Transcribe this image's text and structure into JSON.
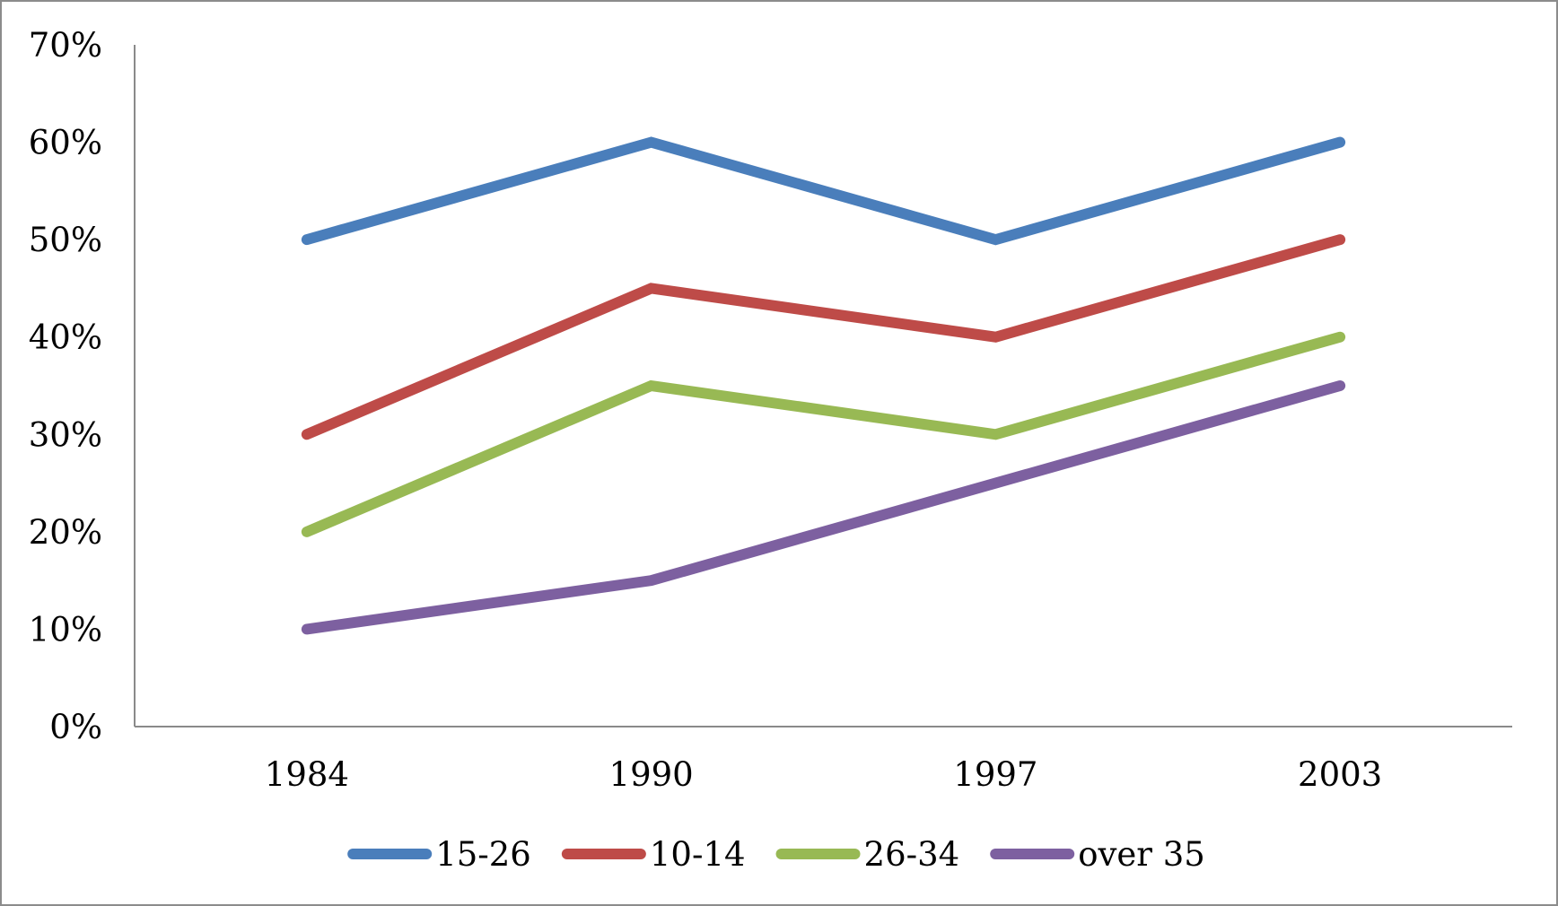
{
  "chart_data": {
    "type": "line",
    "title": "",
    "xlabel": "",
    "ylabel": "",
    "categories": [
      "1984",
      "1990",
      "1997",
      "2003"
    ],
    "ylim": [
      0,
      70
    ],
    "y_ticks": [
      "0%",
      "10%",
      "20%",
      "30%",
      "40%",
      "50%",
      "60%",
      "70%"
    ],
    "y_unit": "%",
    "grid": false,
    "legend_position": "bottom",
    "series": [
      {
        "name": "15-26",
        "values": [
          50,
          60,
          50,
          60
        ],
        "color": "#4a7ebb"
      },
      {
        "name": "10-14",
        "values": [
          30,
          45,
          40,
          50
        ],
        "color": "#be4b48"
      },
      {
        "name": "26-34",
        "values": [
          20,
          35,
          30,
          40
        ],
        "color": "#98b954"
      },
      {
        "name": "over 35",
        "values": [
          10,
          15,
          25,
          35
        ],
        "color": "#7d60a0"
      }
    ]
  }
}
